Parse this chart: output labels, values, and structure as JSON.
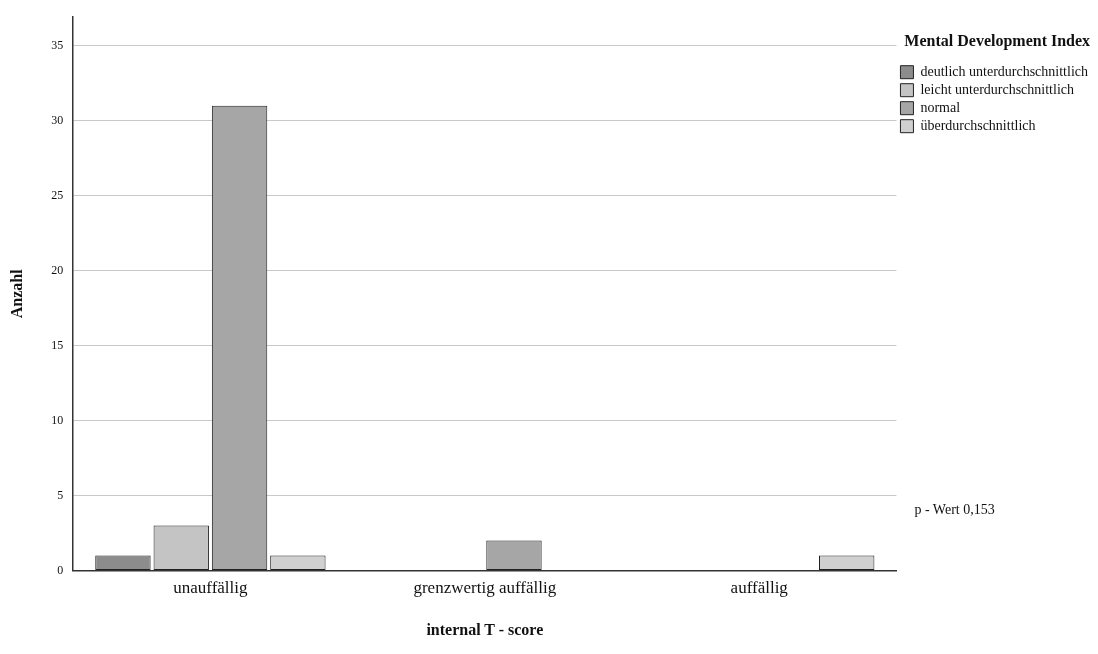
{
  "chart_data": {
    "type": "bar",
    "xlabel": "internal T - score",
    "ylabel": "Anzahl",
    "legend_title": "Mental Development Index",
    "categories": [
      "unauffällig",
      "grenzwertig auffällig",
      "auffällig"
    ],
    "series": [
      {
        "name": "deutlich unterdurchschnittlich",
        "color": "#8c8c8c",
        "values": [
          1,
          null,
          null
        ]
      },
      {
        "name": "leicht unterdurchschnittlich",
        "color": "#c4c4c4",
        "values": [
          3,
          null,
          null
        ]
      },
      {
        "name": "normal",
        "color": "#a6a6a6",
        "values": [
          31,
          2,
          null
        ]
      },
      {
        "name": "überdurchschnittlich",
        "color": "#d0d0d0",
        "values": [
          1,
          null,
          1
        ]
      }
    ],
    "ylim": [
      0,
      36.9
    ],
    "yticks": [
      0,
      5,
      10,
      15,
      20,
      25,
      30,
      35
    ],
    "grid": "y",
    "legend": "top right",
    "annotations": [
      "p - Wert 0,153"
    ]
  }
}
